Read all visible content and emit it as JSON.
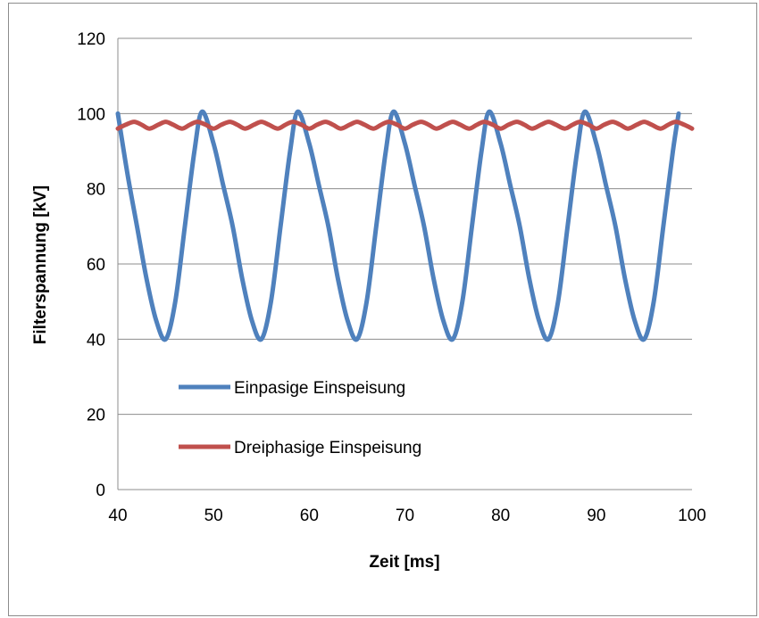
{
  "chart_data": {
    "type": "line",
    "title": "",
    "xlabel": "Zeit [ms]",
    "ylabel": "Filterspannung [kV]",
    "xlim": [
      40,
      100
    ],
    "ylim": [
      0,
      120
    ],
    "xticks": [
      40,
      50,
      60,
      70,
      80,
      90,
      100
    ],
    "yticks": [
      0,
      20,
      40,
      60,
      80,
      100,
      120
    ],
    "x_tick_labels": [
      "40",
      "50",
      "60",
      "70",
      "80",
      "90",
      "100"
    ],
    "y_tick_labels": [
      "0",
      "20",
      "40",
      "60",
      "80",
      "100",
      "120"
    ],
    "grid": "horizontal",
    "legend_position": "inside-lower-left",
    "series": [
      {
        "name": "Einpasige Einspeisung",
        "color": "#4f81bd",
        "x": [
          40,
          41,
          42,
          43,
          44,
          45,
          46,
          47,
          48,
          48.8,
          50,
          51,
          52,
          53,
          54,
          55,
          56,
          57,
          58,
          58.8,
          60,
          61,
          62,
          63,
          64,
          65,
          66,
          67,
          68,
          68.8,
          70,
          71,
          72,
          73,
          74,
          75,
          76,
          77,
          78,
          78.8,
          80,
          81,
          82,
          83,
          84,
          85,
          86,
          87,
          88,
          88.8,
          90,
          91,
          92,
          93,
          94,
          95,
          96,
          97,
          98,
          98.6
        ],
        "y": [
          100,
          84,
          70,
          56,
          45,
          40,
          50,
          70,
          90,
          100.5,
          92,
          81,
          70,
          56,
          45,
          40,
          50,
          70,
          90,
          100.5,
          92,
          81,
          70,
          56,
          45,
          40,
          50,
          70,
          90,
          100.5,
          92,
          81,
          70,
          56,
          45,
          40,
          50,
          70,
          90,
          100.5,
          92,
          81,
          70,
          56,
          45,
          40,
          50,
          70,
          90,
          100.5,
          92,
          81,
          70,
          56,
          45,
          40,
          50,
          70,
          90,
          100
        ]
      },
      {
        "name": "Dreiphasige Einspeisung",
        "color": "#c0504d",
        "x": [
          40,
          40.8,
          41.7,
          42.5,
          43.3,
          44.2,
          45,
          45.8,
          46.7,
          47.5,
          48.3,
          49.2,
          50,
          50.8,
          51.7,
          52.5,
          53.3,
          54.2,
          55,
          55.8,
          56.7,
          57.5,
          58.3,
          59.2,
          60,
          60.8,
          61.7,
          62.5,
          63.3,
          64.2,
          65,
          65.8,
          66.7,
          67.5,
          68.3,
          69.2,
          70,
          70.8,
          71.7,
          72.5,
          73.3,
          74.2,
          75,
          75.8,
          76.7,
          77.5,
          78.3,
          79.2,
          80,
          80.8,
          81.7,
          82.5,
          83.3,
          84.2,
          85,
          85.8,
          86.7,
          87.5,
          88.3,
          89.2,
          90,
          90.8,
          91.7,
          92.5,
          93.3,
          94.2,
          95,
          95.8,
          96.7,
          97.5,
          98.3,
          99.2,
          100
        ],
        "y": [
          96,
          97,
          97.8,
          97,
          96,
          97,
          97.8,
          97,
          96,
          97,
          97.8,
          97,
          96,
          97,
          97.8,
          97,
          96,
          97,
          97.8,
          97,
          96,
          97,
          97.8,
          97,
          96,
          97,
          97.8,
          97,
          96,
          97,
          97.8,
          97,
          96,
          97,
          97.8,
          97,
          96,
          97,
          97.8,
          97,
          96,
          97,
          97.8,
          97,
          96,
          97,
          97.8,
          97,
          96,
          97,
          97.8,
          97,
          96,
          97,
          97.8,
          97,
          96,
          97,
          97.8,
          97,
          96,
          97,
          97.8,
          97,
          96,
          97,
          97.8,
          97,
          96,
          97,
          97.8,
          97,
          96
        ]
      }
    ]
  }
}
